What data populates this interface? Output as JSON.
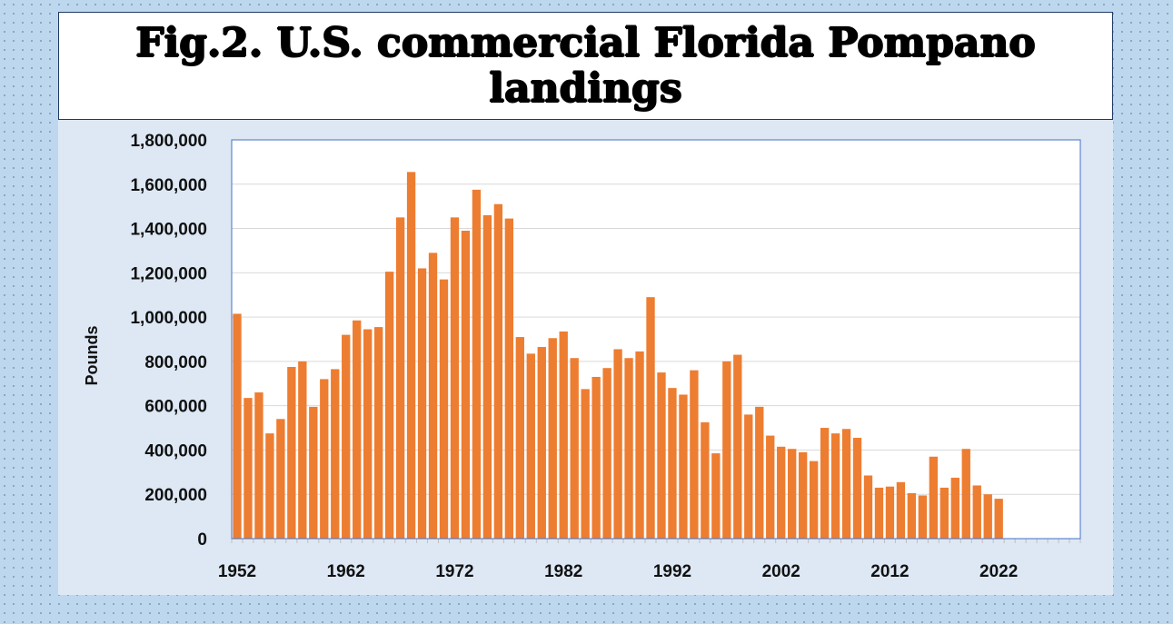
{
  "title": "Fig.2. U.S. commercial Florida Pompano landings",
  "colors": {
    "bar": "#ed7d31",
    "plot_bg": "#ffffff",
    "chart_bg": "#dde8f4",
    "grid": "#d9d9d9",
    "plot_border": "#4472c4"
  },
  "chart_data": {
    "type": "bar",
    "title": "Fig.2. U.S. commercial Florida Pompano landings",
    "xlabel": "",
    "ylabel": "Pounds",
    "ylim": [
      0,
      1800000
    ],
    "yticks": [
      0,
      200000,
      400000,
      600000,
      800000,
      1000000,
      1200000,
      1400000,
      1600000,
      1800000
    ],
    "ytick_labels": [
      "0",
      "200,000",
      "400,000",
      "600,000",
      "800,000",
      "1,000,000",
      "1,200,000",
      "1,400,000",
      "1,600,000",
      "1,800,000"
    ],
    "xlim": [
      1952,
      2030
    ],
    "xtick_labels": [
      "1952",
      "1962",
      "1972",
      "1982",
      "1992",
      "2002",
      "2012",
      "2022"
    ],
    "grid": true,
    "x": [
      1952,
      1953,
      1954,
      1955,
      1956,
      1957,
      1958,
      1959,
      1960,
      1961,
      1962,
      1963,
      1964,
      1965,
      1966,
      1967,
      1968,
      1969,
      1970,
      1971,
      1972,
      1973,
      1974,
      1975,
      1976,
      1977,
      1978,
      1979,
      1980,
      1981,
      1982,
      1983,
      1984,
      1985,
      1986,
      1987,
      1988,
      1989,
      1990,
      1991,
      1992,
      1993,
      1994,
      1995,
      1996,
      1997,
      1998,
      1999,
      2000,
      2001,
      2002,
      2003,
      2004,
      2005,
      2006,
      2007,
      2008,
      2009,
      2010,
      2011,
      2012,
      2013,
      2014,
      2015,
      2016,
      2017,
      2018,
      2019,
      2020,
      2021,
      2022,
      2023
    ],
    "values": [
      1015000,
      635000,
      660000,
      475000,
      540000,
      775000,
      800000,
      595000,
      720000,
      765000,
      920000,
      985000,
      945000,
      955000,
      1205000,
      1450000,
      1655000,
      1220000,
      1290000,
      1170000,
      1450000,
      1390000,
      1575000,
      1460000,
      1510000,
      1445000,
      910000,
      835000,
      865000,
      905000,
      935000,
      815000,
      675000,
      730000,
      770000,
      855000,
      815000,
      845000,
      1090000,
      750000,
      680000,
      650000,
      760000,
      525000,
      385000,
      800000,
      830000,
      560000,
      595000,
      465000,
      415000,
      405000,
      390000,
      350000,
      500000,
      475000,
      495000,
      455000,
      285000,
      230000,
      235000,
      255000,
      205000,
      195000,
      370000,
      230000,
      275000,
      405000,
      240000,
      200000,
      180000,
      0
    ]
  }
}
